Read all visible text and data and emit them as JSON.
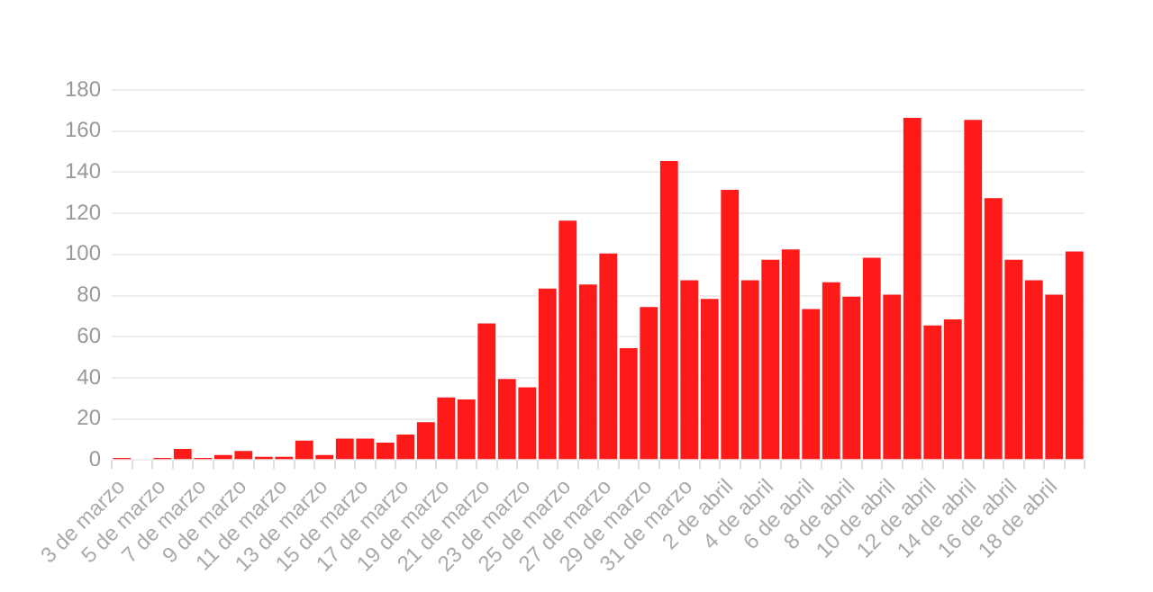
{
  "chart_data": {
    "type": "bar",
    "categories": [
      "3 de marzo",
      null,
      "5 de marzo",
      null,
      "7 de marzo",
      null,
      "9 de marzo",
      null,
      "11 de marzo",
      null,
      "13 de marzo",
      null,
      "15 de marzo",
      null,
      "17 de marzo",
      null,
      "19 de marzo",
      null,
      "21 de marzo",
      null,
      "23 de marzo",
      null,
      "25 de marzo",
      null,
      "27 de marzo",
      null,
      "29 de marzo",
      null,
      "31 de marzo",
      null,
      "2 de abril",
      null,
      "4 de abril",
      null,
      "6 de abril",
      null,
      "8 de abril",
      null,
      "10 de abril",
      null,
      "12 de abril",
      null,
      "14 de abril",
      null,
      "16 de abril",
      null,
      "18 de abril",
      null
    ],
    "values": [
      1,
      0,
      1,
      6,
      1,
      3,
      5,
      2,
      2,
      10,
      3,
      11,
      11,
      9,
      13,
      19,
      31,
      30,
      67,
      40,
      36,
      84,
      117,
      86,
      101,
      55,
      75,
      146,
      88,
      79,
      132,
      88,
      98,
      103,
      74,
      87,
      80,
      99,
      81,
      167,
      66,
      69,
      166,
      128,
      98,
      88,
      81,
      102
    ],
    "color": "#ff1a1a",
    "ylim": [
      0,
      180
    ],
    "yticks": [
      0,
      20,
      40,
      60,
      80,
      100,
      120,
      140,
      160,
      180
    ],
    "grid": "y"
  }
}
